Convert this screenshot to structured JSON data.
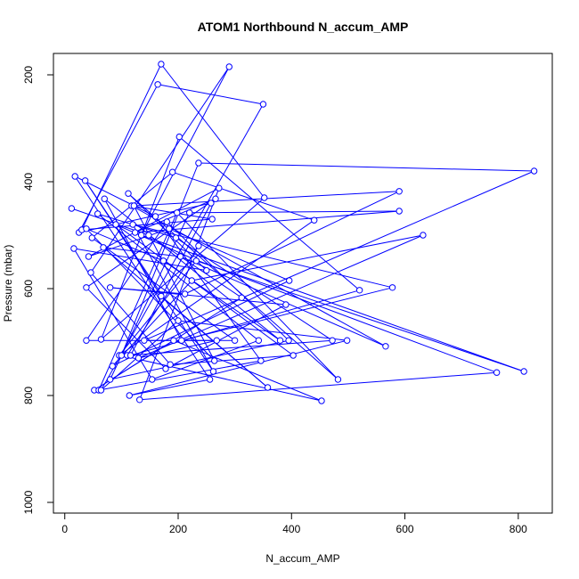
{
  "chart_data": {
    "type": "scatter",
    "title": "ATOM1 Northbound N_accum_AMP",
    "xlabel": "N_accum_AMP",
    "ylabel": "Pressure (mbar)",
    "xlim": [
      -20,
      860
    ],
    "ylim": [
      1020,
      160
    ],
    "y_reversed": true,
    "grid": false,
    "x_ticks": [
      0,
      200,
      400,
      600,
      800
    ],
    "y_ticks": [
      200,
      400,
      600,
      800,
      1000
    ],
    "series": [
      {
        "color": "#0000ff",
        "marker": "open-circle",
        "connected": true,
        "points": [
          [
            12,
            450
          ],
          [
            16,
            525
          ],
          [
            18,
            390
          ],
          [
            25,
            495
          ],
          [
            30,
            490
          ],
          [
            36,
            398
          ],
          [
            38,
            488
          ],
          [
            38,
            598
          ],
          [
            38,
            697
          ],
          [
            42,
            540
          ],
          [
            46,
            570
          ],
          [
            48,
            505
          ],
          [
            52,
            790
          ],
          [
            58,
            460
          ],
          [
            60,
            790
          ],
          [
            64,
            790
          ],
          [
            64,
            695
          ],
          [
            68,
            523
          ],
          [
            70,
            432
          ],
          [
            80,
            598
          ],
          [
            80,
            770
          ],
          [
            84,
            745
          ],
          [
            90,
            480
          ],
          [
            96,
            725
          ],
          [
            100,
            725
          ],
          [
            110,
            725
          ],
          [
            112,
            422
          ],
          [
            114,
            800
          ],
          [
            116,
            725
          ],
          [
            118,
            445
          ],
          [
            120,
            480
          ],
          [
            122,
            445
          ],
          [
            124,
            495
          ],
          [
            130,
            730
          ],
          [
            132,
            808
          ],
          [
            135,
            500
          ],
          [
            140,
            697
          ],
          [
            148,
            500
          ],
          [
            154,
            770
          ],
          [
            160,
            465
          ],
          [
            164,
            218
          ],
          [
            170,
            180
          ],
          [
            170,
            614
          ],
          [
            174,
            548
          ],
          [
            178,
            750
          ],
          [
            180,
            475
          ],
          [
            184,
            488
          ],
          [
            186,
            742
          ],
          [
            190,
            382
          ],
          [
            192,
            697
          ],
          [
            196,
            505
          ],
          [
            198,
            458
          ],
          [
            200,
            660
          ],
          [
            202,
            316
          ],
          [
            204,
            540
          ],
          [
            206,
            697
          ],
          [
            212,
            610
          ],
          [
            220,
            458
          ],
          [
            224,
            585
          ],
          [
            228,
            545
          ],
          [
            232,
            548
          ],
          [
            236,
            365
          ],
          [
            236,
            520
          ],
          [
            250,
            566
          ],
          [
            256,
            770
          ],
          [
            258,
            440
          ],
          [
            260,
            470
          ],
          [
            262,
            755
          ],
          [
            264,
            735
          ],
          [
            266,
            432
          ],
          [
            268,
            697
          ],
          [
            272,
            412
          ],
          [
            290,
            185
          ],
          [
            300,
            697
          ],
          [
            312,
            617
          ],
          [
            342,
            697
          ],
          [
            346,
            735
          ],
          [
            350,
            255
          ],
          [
            352,
            430
          ],
          [
            358,
            785
          ],
          [
            380,
            697
          ],
          [
            390,
            630
          ],
          [
            395,
            697
          ],
          [
            396,
            585
          ],
          [
            403,
            725
          ],
          [
            440,
            472
          ],
          [
            453,
            810
          ],
          [
            472,
            697
          ],
          [
            482,
            770
          ],
          [
            498,
            697
          ],
          [
            520,
            603
          ],
          [
            566,
            708
          ],
          [
            578,
            598
          ],
          [
            590,
            418
          ],
          [
            590,
            455
          ],
          [
            632,
            500
          ],
          [
            762,
            757
          ],
          [
            810,
            755
          ],
          [
            828,
            380
          ]
        ]
      }
    ]
  }
}
